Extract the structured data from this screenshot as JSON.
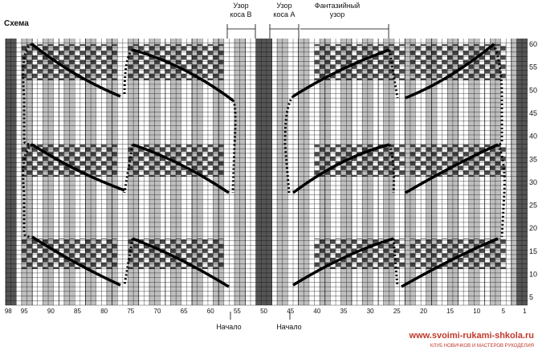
{
  "title": "Схема",
  "headers": [
    {
      "lines": [
        "Узор",
        "коса В"
      ]
    },
    {
      "lines": [
        "Узор",
        "коса А"
      ]
    },
    {
      "lines": [
        "Фантазийный",
        "узор"
      ]
    }
  ],
  "row_numbers": [
    5,
    10,
    15,
    20,
    25,
    30,
    35,
    40,
    45,
    50,
    55,
    60
  ],
  "column_numbers": [
    98,
    95,
    90,
    85,
    80,
    75,
    70,
    65,
    60,
    55,
    50,
    45,
    40,
    35,
    30,
    25,
    20,
    15,
    10,
    5,
    1
  ],
  "start_labels": [
    "Начало",
    "Начало"
  ],
  "watermark": {
    "url": "www.svoimi-rukami-shkola.ru",
    "caption": "КЛУБ НОВИЧКОВ И МАСТЕРОВ РУКОДЕЛИЯ"
  }
}
